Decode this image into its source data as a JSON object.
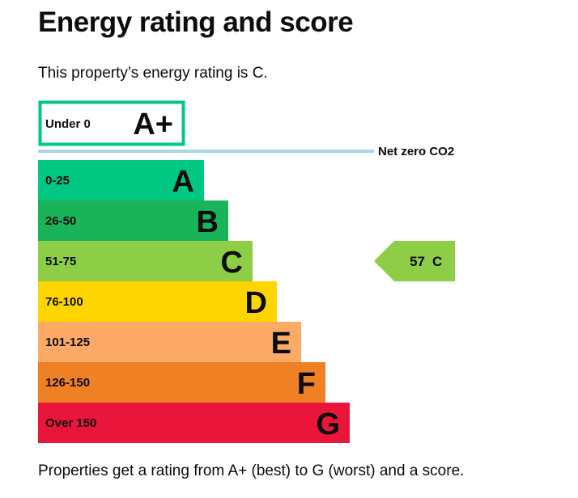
{
  "page": {
    "title": "Energy rating and score",
    "intro": "This property’s energy rating is C.",
    "footer": "Properties get a rating from A+ (best) to G (worst) and a score."
  },
  "chart_data": {
    "type": "bar",
    "orientation": "horizontal",
    "categories": [
      "A+",
      "A",
      "B",
      "C",
      "D",
      "E",
      "F",
      "G"
    ],
    "bands": [
      {
        "letter": "A+",
        "range": "Under 0",
        "color": "#00c781",
        "outlined": true
      },
      {
        "letter": "A",
        "range": "0-25",
        "color": "#00c781"
      },
      {
        "letter": "B",
        "range": "26-50",
        "color": "#19b459"
      },
      {
        "letter": "C",
        "range": "51-75",
        "color": "#8dce46"
      },
      {
        "letter": "D",
        "range": "76-100",
        "color": "#ffd500"
      },
      {
        "letter": "E",
        "range": "101-125",
        "color": "#fcaa65"
      },
      {
        "letter": "F",
        "range": "126-150",
        "color": "#ef8023"
      },
      {
        "letter": "G",
        "range": "Over 150",
        "color": "#e9153b"
      }
    ],
    "net_zero": {
      "label": "Net zero CO2",
      "color": "#a8d8e8"
    },
    "current": {
      "score": "57",
      "rating": "C",
      "color": "#8dce46"
    }
  }
}
